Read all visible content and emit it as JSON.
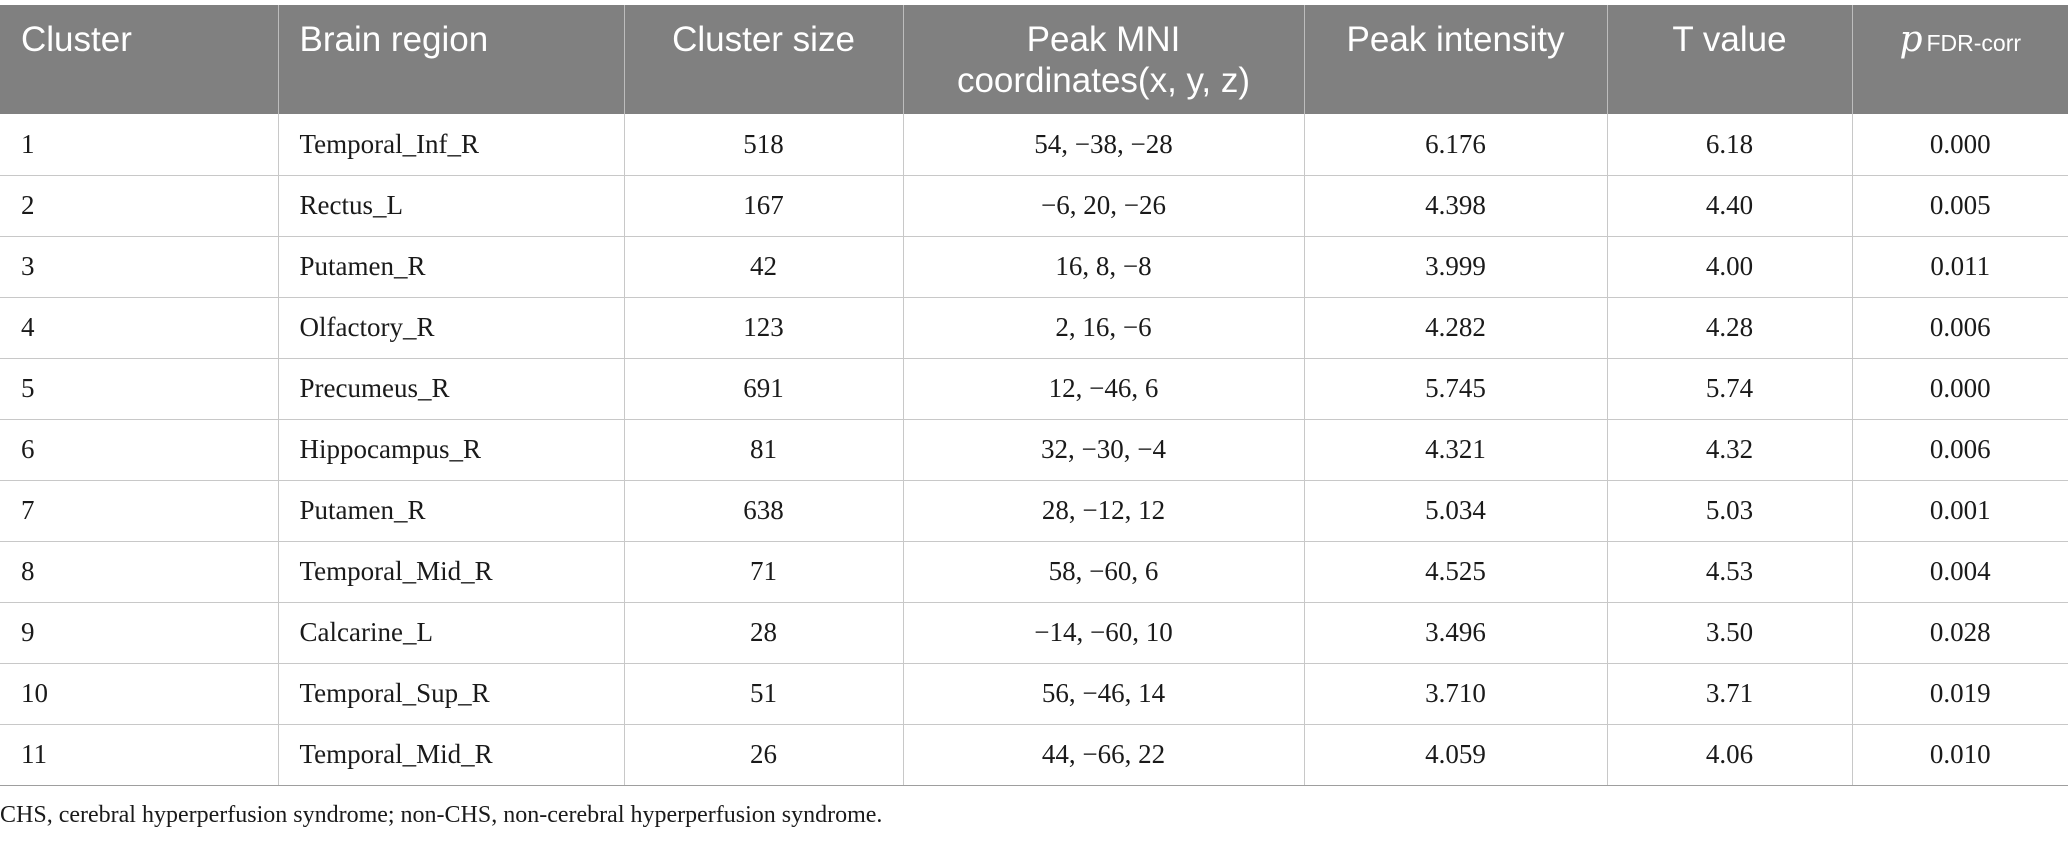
{
  "table": {
    "headers": {
      "cluster": "Cluster",
      "brain_region": "Brain region",
      "cluster_size": "Cluster size",
      "peak_mni_line1": "Peak MNI",
      "peak_mni_line2": "coordinates(x, y, z)",
      "peak_intensity": "Peak intensity",
      "t_value": "T value",
      "p": "p",
      "p_sub": "FDR-corr"
    },
    "rows": [
      [
        "1",
        "Temporal_Inf_R",
        "518",
        "54, −38, −28",
        "6.176",
        "6.18",
        "0.000"
      ],
      [
        "2",
        "Rectus_L",
        "167",
        "−6, 20, −26",
        "4.398",
        "4.40",
        "0.005"
      ],
      [
        "3",
        "Putamen_R",
        "42",
        "16, 8, −8",
        "3.999",
        "4.00",
        "0.011"
      ],
      [
        "4",
        "Olfactory_R",
        "123",
        "2, 16, −6",
        "4.282",
        "4.28",
        "0.006"
      ],
      [
        "5",
        "Precumeus_R",
        "691",
        "12, −46, 6",
        "5.745",
        "5.74",
        "0.000"
      ],
      [
        "6",
        "Hippocampus_R",
        "81",
        "32, −30, −4",
        "4.321",
        "4.32",
        "0.006"
      ],
      [
        "7",
        "Putamen_R",
        "638",
        "28, −12, 12",
        "5.034",
        "5.03",
        "0.001"
      ],
      [
        "8",
        "Temporal_Mid_R",
        "71",
        "58, −60, 6",
        "4.525",
        "4.53",
        "0.004"
      ],
      [
        "9",
        "Calcarine_L",
        "28",
        "−14, −60, 10",
        "3.496",
        "3.50",
        "0.028"
      ],
      [
        "10",
        "Temporal_Sup_R",
        "51",
        "56, −46, 14",
        "3.710",
        "3.71",
        "0.019"
      ],
      [
        "11",
        "Temporal_Mid_R",
        "26",
        "44, −66, 22",
        "4.059",
        "4.06",
        "0.010"
      ]
    ]
  },
  "footnote": "CHS, cerebral hyperperfusion syndrome; non-CHS, non-cerebral hyperperfusion syndrome.",
  "colors": {
    "header_bg": "#808080",
    "header_text": "#ffffff",
    "grid": "#c8c8c8"
  }
}
